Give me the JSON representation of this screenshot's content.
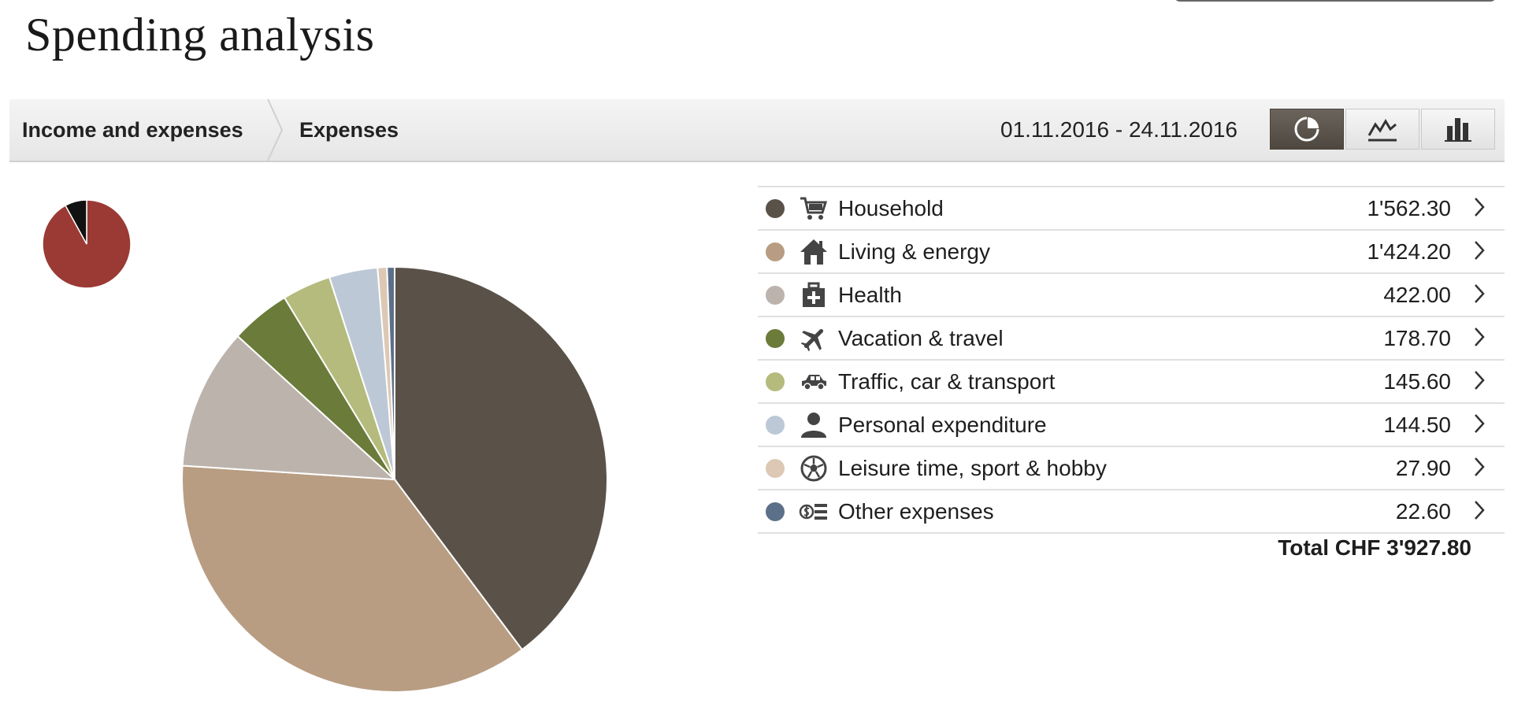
{
  "page": {
    "title": "Spending analysis"
  },
  "toolbar": {
    "breadcrumbs": [
      "Income and expenses",
      "Expenses"
    ],
    "date_range": "01.11.2016 - 24.11.2016",
    "views": [
      "pie-chart-icon",
      "line-chart-icon",
      "bar-chart-icon"
    ],
    "active_view": "pie"
  },
  "summary_pie": {
    "slices": [
      {
        "value": 92,
        "color": "#9b3a34"
      },
      {
        "value": 8,
        "color": "#111111"
      }
    ]
  },
  "chart_data": {
    "type": "pie",
    "categories": [
      "Household",
      "Living & energy",
      "Health",
      "Vacation & travel",
      "Traffic, car & transport",
      "Personal expenditure",
      "Leisure time, sport & hobby",
      "Other expenses"
    ],
    "values": [
      1562.3,
      1424.2,
      422.0,
      178.7,
      145.6,
      144.5,
      27.9,
      22.6
    ],
    "colors": [
      "#5a5249",
      "#b89d83",
      "#bcb3ad",
      "#6a7b3a",
      "#b4bb7c",
      "#bdc8d6",
      "#dcc8b4",
      "#5d7089"
    ]
  },
  "legend": {
    "items": [
      {
        "label": "Household",
        "amount": "1'562.30",
        "color": "#5a5249",
        "icon": "shopping-cart-icon"
      },
      {
        "label": "Living & energy",
        "amount": "1'424.20",
        "color": "#b89d83",
        "icon": "house-icon"
      },
      {
        "label": "Health",
        "amount": "422.00",
        "color": "#bcb3ad",
        "icon": "first-aid-kit-icon"
      },
      {
        "label": "Vacation & travel",
        "amount": "178.70",
        "color": "#6a7b3a",
        "icon": "airplane-icon"
      },
      {
        "label": "Traffic, car & transport",
        "amount": "145.60",
        "color": "#b4bb7c",
        "icon": "car-icon"
      },
      {
        "label": "Personal expenditure",
        "amount": "144.50",
        "color": "#bdc8d6",
        "icon": "person-icon"
      },
      {
        "label": "Leisure time, sport & hobby",
        "amount": "27.90",
        "color": "#dcc8b4",
        "icon": "soccer-ball-icon"
      },
      {
        "label": "Other expenses",
        "amount": "22.60",
        "color": "#5d7089",
        "icon": "money-icon"
      }
    ],
    "total": "Total CHF 3'927.80"
  }
}
